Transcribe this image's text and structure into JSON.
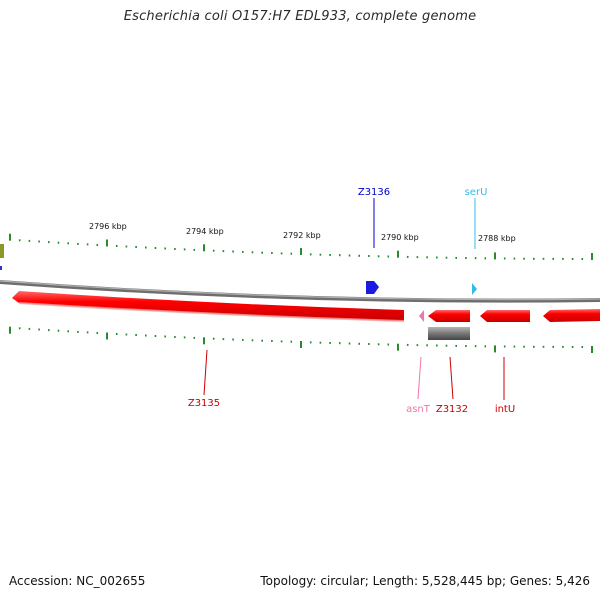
{
  "title": "Escherichia coli O157:H7 EDL933, complete genome",
  "footer": {
    "accession": "Accession: NC_002655",
    "info": "Topology: circular; Length: 5,528,445 bp; Genes: 5,426"
  },
  "ruler_labels": [
    "2796 kbp",
    "2794 kbp",
    "2792 kbp",
    "2790 kbp",
    "2788 kbp"
  ],
  "genes": [
    {
      "name": "Z3136",
      "color": "#0000cc"
    },
    {
      "name": "serU",
      "color": "#33bbee"
    },
    {
      "name": "Z3135",
      "color": "#cc0000"
    },
    {
      "name": "asnT",
      "color": "#ee77aa"
    },
    {
      "name": "Z3132",
      "color": "#cc0000"
    },
    {
      "name": "intU",
      "color": "#cc0000"
    }
  ],
  "colors": {
    "backbone": "#8a8a8a",
    "cds": "#ff0000",
    "trna": "#2f2fd8",
    "tick": "#2b8a2b",
    "pseudo": "#555555"
  }
}
